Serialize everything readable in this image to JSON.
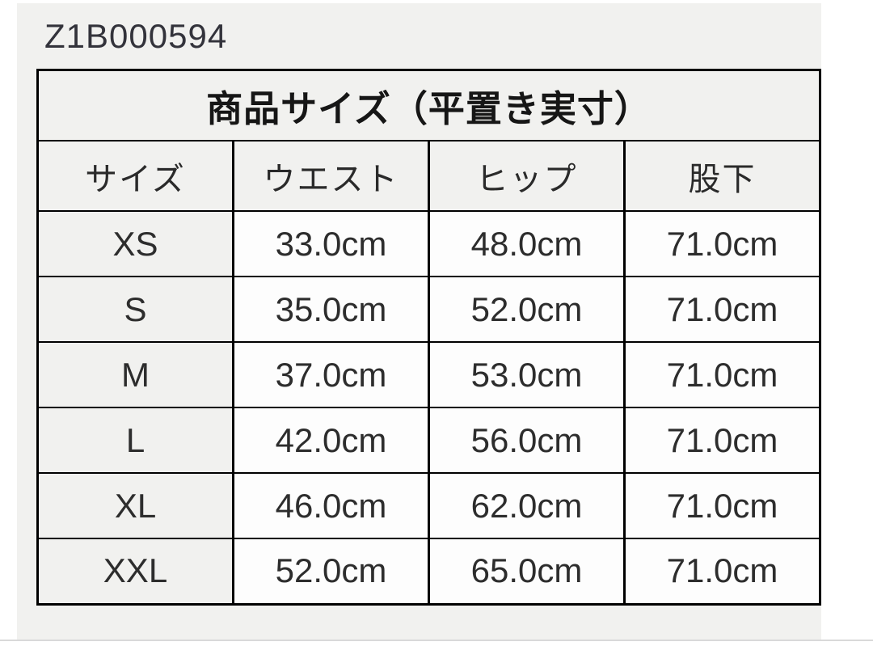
{
  "product_code": "Z1B000594",
  "table": {
    "title": "商品サイズ（平置き実寸）",
    "columns": [
      "サイズ",
      "ウエスト",
      "ヒップ",
      "股下"
    ],
    "rows": [
      {
        "size": "XS",
        "waist": "33.0cm",
        "hip": "48.0cm",
        "inseam": "71.0cm"
      },
      {
        "size": "S",
        "waist": "35.0cm",
        "hip": "52.0cm",
        "inseam": "71.0cm"
      },
      {
        "size": "M",
        "waist": "37.0cm",
        "hip": "53.0cm",
        "inseam": "71.0cm"
      },
      {
        "size": "L",
        "waist": "42.0cm",
        "hip": "56.0cm",
        "inseam": "71.0cm"
      },
      {
        "size": "XL",
        "waist": "46.0cm",
        "hip": "62.0cm",
        "inseam": "71.0cm"
      },
      {
        "size": "XXL",
        "waist": "52.0cm",
        "hip": "65.0cm",
        "inseam": "71.0cm"
      }
    ]
  },
  "colors": {
    "panel_bg": "#f1f1ef",
    "cell_bg": "#fdfdfd",
    "border": "#000000",
    "text": "#2d2d2d",
    "divider": "#d9d9d9"
  },
  "chart_data": {
    "type": "table",
    "title": "商品サイズ（平置き実寸）",
    "columns": [
      "サイズ",
      "ウエスト",
      "ヒップ",
      "股下"
    ],
    "rows": [
      [
        "XS",
        "33.0cm",
        "48.0cm",
        "71.0cm"
      ],
      [
        "S",
        "35.0cm",
        "52.0cm",
        "71.0cm"
      ],
      [
        "M",
        "37.0cm",
        "53.0cm",
        "71.0cm"
      ],
      [
        "L",
        "42.0cm",
        "56.0cm",
        "71.0cm"
      ],
      [
        "XL",
        "46.0cm",
        "62.0cm",
        "71.0cm"
      ],
      [
        "XXL",
        "52.0cm",
        "65.0cm",
        "71.0cm"
      ]
    ],
    "units": "cm",
    "annotations": [
      "Z1B000594"
    ]
  }
}
